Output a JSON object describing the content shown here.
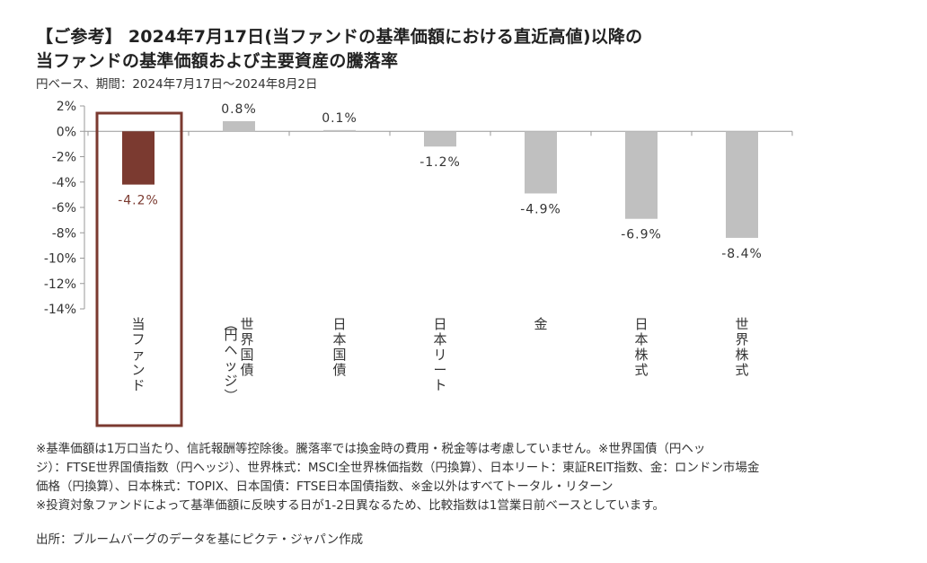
{
  "header": {
    "title_line1": "【ご参考】 2024年7月17日(当ファンドの基準価額における直近高値)以降の",
    "title_line2": "当ファンドの基準価額および主要資産の騰落率",
    "subtitle": "円ベース、期間：2024年7月17日～2024年8月2日"
  },
  "chart_data": {
    "type": "bar",
    "categories": [
      "当ファンド",
      "世界国債 (円ヘッジ)",
      "日本国債",
      "日本リート",
      "金",
      "日本株式",
      "世界株式"
    ],
    "values": [
      -4.2,
      0.8,
      0.1,
      -1.2,
      -4.9,
      -6.9,
      -8.4
    ],
    "value_labels": [
      "-4.2%",
      "0.8%",
      "0.1%",
      "-1.2%",
      "-4.9%",
      "-6.9%",
      "-8.4%"
    ],
    "category_lines": [
      [
        "当ファンド"
      ],
      [
        "世界国債",
        "(円ヘッジ)"
      ],
      [
        "日本国債"
      ],
      [
        "日本リート"
      ],
      [
        "金"
      ],
      [
        "日本株式"
      ],
      [
        "世界株式"
      ]
    ],
    "yticks": [
      2,
      0,
      -2,
      -4,
      -6,
      -8,
      -10,
      -12,
      -14
    ],
    "ytick_labels": [
      "2%",
      "0%",
      "-2%",
      "-4%",
      "-6%",
      "-8%",
      "-10%",
      "-12%",
      "-14%"
    ],
    "ylim": [
      -14,
      2
    ],
    "highlight_index": 0,
    "colors": {
      "highlight": "#7b3a30",
      "other": "#c0c0c0",
      "frame": "#7b3a30",
      "axis": "#999999"
    }
  },
  "footer": {
    "notes": [
      "※基準価額は1万口当たり、信託報酬等控除後。騰落率では換金時の費用・税金等は考慮していません。※世界国債（円ヘッ",
      "ジ）：FTSE世界国債指数（円ヘッジ）、世界株式：MSCI全世界株価指数（円換算）、日本リート：東証REIT指数、金：ロンドン市場金",
      "価格（円換算）、日本株式：TOPIX、日本国債：FTSE日本国債指数、※金以外はすべてトータル・リターン",
      "※投資対象ファンドによって基準価額に反映する日が1-2日異なるため、比較指数は1営業日前ベースとしています。"
    ],
    "source": "出所：ブルームバーグのデータを基にピクテ・ジャパン作成"
  }
}
